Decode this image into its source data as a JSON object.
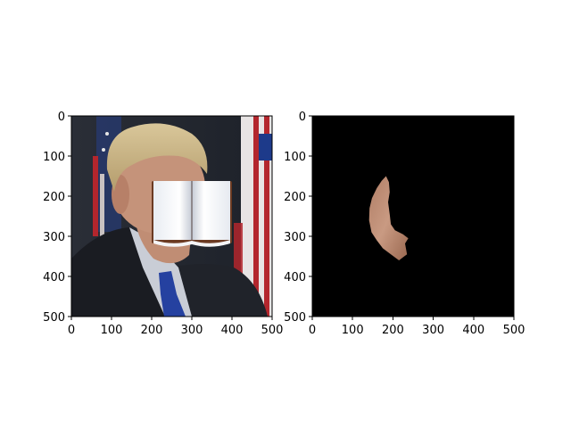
{
  "chart_data": [
    {
      "type": "image",
      "title": "",
      "xlabel": "",
      "ylabel": "",
      "xlim": [
        0,
        500
      ],
      "ylim": [
        500,
        0
      ],
      "xticks": [
        0,
        100,
        200,
        300,
        400,
        500
      ],
      "yticks": [
        0,
        100,
        200,
        300,
        400,
        500
      ],
      "xticklabels": [
        "0",
        "100",
        "200",
        "300",
        "400",
        "500"
      ],
      "yticklabels": [
        "0",
        "100",
        "200",
        "300",
        "400",
        "500"
      ],
      "grid": false,
      "content": "photograph of a man in a dark suit and blue tie before an American flag, with a white open-book image covering the lower face",
      "book_rect": {
        "x": [
          200,
          400
        ],
        "y": [
          165,
          310
        ]
      }
    },
    {
      "type": "image",
      "title": "",
      "xlabel": "",
      "ylabel": "",
      "xlim": [
        0,
        500
      ],
      "ylim": [
        500,
        0
      ],
      "xticks": [
        0,
        100,
        200,
        300,
        400,
        500
      ],
      "yticks": [
        0,
        100,
        200,
        300,
        400,
        500
      ],
      "xticklabels": [
        "0",
        "100",
        "200",
        "300",
        "400",
        "500"
      ],
      "yticklabels": [
        "0",
        "100",
        "200",
        "300",
        "400",
        "500"
      ],
      "grid": false,
      "content": "black background with a skin-colored segmented face region (crescent shape)",
      "mask_outline": [
        [
          183,
          150
        ],
        [
          190,
          165
        ],
        [
          192,
          190
        ],
        [
          188,
          215
        ],
        [
          192,
          245
        ],
        [
          195,
          270
        ],
        [
          205,
          285
        ],
        [
          225,
          295
        ],
        [
          238,
          305
        ],
        [
          230,
          318
        ],
        [
          235,
          345
        ],
        [
          228,
          350
        ],
        [
          215,
          360
        ],
        [
          195,
          345
        ],
        [
          175,
          330
        ],
        [
          160,
          310
        ],
        [
          147,
          290
        ],
        [
          141,
          260
        ],
        [
          142,
          230
        ],
        [
          148,
          205
        ],
        [
          160,
          180
        ],
        [
          172,
          162
        ]
      ]
    }
  ]
}
